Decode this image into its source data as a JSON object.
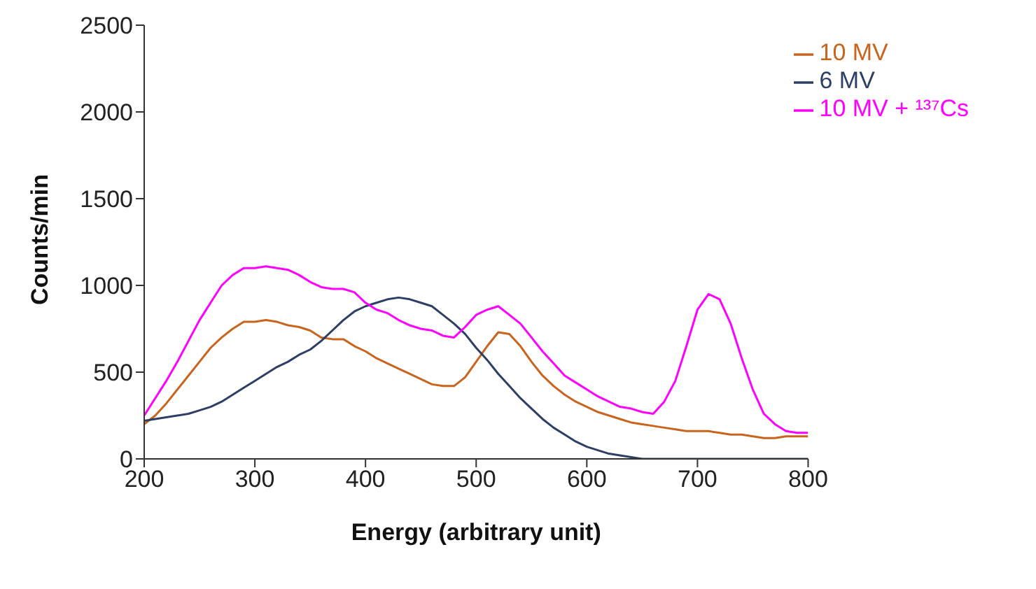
{
  "chart_data": {
    "type": "line",
    "xlabel": "Energy (arbitrary unit)",
    "ylabel": "Counts/min",
    "x": [
      200,
      210,
      220,
      230,
      240,
      250,
      260,
      270,
      280,
      290,
      300,
      310,
      320,
      330,
      340,
      350,
      360,
      370,
      380,
      390,
      400,
      410,
      420,
      430,
      440,
      450,
      460,
      470,
      480,
      490,
      500,
      510,
      520,
      530,
      540,
      550,
      560,
      570,
      580,
      590,
      600,
      610,
      620,
      630,
      640,
      650,
      660,
      670,
      680,
      690,
      700,
      710,
      720,
      730,
      740,
      750,
      760,
      770,
      780,
      790,
      800
    ],
    "series": [
      {
        "name": "10 MV",
        "color": "#c8641e",
        "values": [
          200,
          250,
          320,
          400,
          480,
          560,
          640,
          700,
          750,
          790,
          790,
          800,
          790,
          770,
          760,
          740,
          700,
          690,
          690,
          650,
          620,
          580,
          550,
          520,
          490,
          460,
          430,
          420,
          420,
          470,
          560,
          650,
          730,
          720,
          650,
          560,
          480,
          420,
          370,
          330,
          300,
          270,
          250,
          230,
          210,
          200,
          190,
          180,
          170,
          160,
          160,
          160,
          150,
          140,
          140,
          130,
          120,
          120,
          130,
          130,
          130
        ]
      },
      {
        "name": "6 MV",
        "color": "#2e3f66",
        "values": [
          220,
          230,
          240,
          250,
          260,
          280,
          300,
          330,
          370,
          410,
          450,
          490,
          530,
          560,
          600,
          630,
          680,
          740,
          800,
          850,
          880,
          900,
          920,
          930,
          920,
          900,
          880,
          830,
          780,
          720,
          640,
          570,
          490,
          420,
          350,
          290,
          230,
          180,
          140,
          100,
          70,
          50,
          30,
          20,
          10,
          0,
          0,
          0,
          0,
          0,
          0,
          0,
          0,
          0,
          0,
          0,
          0,
          0,
          0,
          0,
          0
        ]
      },
      {
        "name": "10 MV + ¹³⁷Cs",
        "color": "#ff00ff",
        "values": [
          250,
          350,
          450,
          560,
          680,
          800,
          900,
          1000,
          1060,
          1100,
          1100,
          1110,
          1100,
          1090,
          1060,
          1020,
          990,
          980,
          980,
          960,
          900,
          860,
          840,
          800,
          770,
          750,
          740,
          710,
          700,
          760,
          830,
          860,
          880,
          830,
          780,
          700,
          620,
          550,
          480,
          440,
          400,
          360,
          330,
          300,
          290,
          270,
          260,
          330,
          450,
          650,
          860,
          950,
          920,
          780,
          580,
          400,
          260,
          200,
          160,
          150,
          150
        ]
      }
    ],
    "xlim": [
      200,
      800
    ],
    "xticks": [
      200,
      300,
      400,
      500,
      600,
      700,
      800
    ],
    "ylim": [
      0,
      2500
    ],
    "yticks": [
      0,
      500,
      1000,
      1500,
      2000,
      2500
    ],
    "legend": "top right",
    "marker": "none",
    "line_style": "solid"
  }
}
